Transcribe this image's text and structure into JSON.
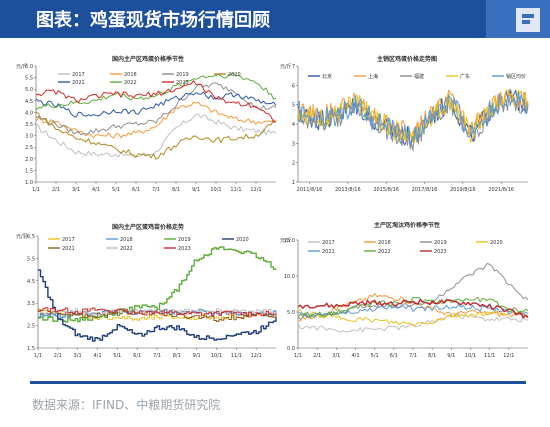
{
  "header": {
    "title": "图表：鸡蛋现货市场行情回顾"
  },
  "source": "数据来源：IFIND、中粮期货研究院",
  "charts": [
    {
      "id": "c1",
      "title": "国内主产区鸡蛋价格季节性",
      "unit": "元/斤",
      "y": [
        1.0,
        6.0
      ],
      "yticks": [
        "1.0",
        "1.5",
        "2.0",
        "2.5",
        "3.0",
        "3.5",
        "4.0",
        "4.5",
        "5.0",
        "5.5",
        "6.0"
      ],
      "xticks": [
        "1/1",
        "2/1",
        "3/1",
        "4/1",
        "5/1",
        "6/1",
        "7/1",
        "8/1",
        "9/1",
        "10/1",
        "11/1",
        "12/1"
      ],
      "legend": [
        {
          "name": "2017",
          "color": "#bfbfbf"
        },
        {
          "name": "2018",
          "color": "#f59a3a"
        },
        {
          "name": "2019",
          "color": "#8e8e8e"
        },
        {
          "name": "2020",
          "color": "#b08a1e"
        },
        {
          "name": "2021",
          "color": "#2c5aa8"
        },
        {
          "name": "2022",
          "color": "#5dab3a"
        },
        {
          "name": "2023",
          "color": "#d22b2b"
        }
      ]
    },
    {
      "id": "c2",
      "title": "主销区鸡蛋价格走势图",
      "unit": "元/斤",
      "y": [
        1,
        7
      ],
      "yticks": [
        "1",
        "2",
        "3",
        "4",
        "5",
        "6",
        "7"
      ],
      "xticks": [
        "2011/8/16",
        "2013/8/16",
        "2015/8/16",
        "2017/8/16",
        "2019/8/16",
        "2021/8/16"
      ],
      "legend": [
        {
          "name": "北京",
          "color": "#2c5aa8"
        },
        {
          "name": "上海",
          "color": "#f59a3a"
        },
        {
          "name": "福建",
          "color": "#8e8e8e"
        },
        {
          "name": "广东",
          "color": "#e8c21e"
        },
        {
          "name": "销区均价",
          "color": "#5b9bd5"
        }
      ]
    },
    {
      "id": "c3",
      "title": "国内主产区蛋鸡苗价格走势",
      "unit": "元/羽",
      "y": [
        1.5,
        7.0
      ],
      "yticks": [
        "1.5",
        "2.5",
        "3.5",
        "4.5",
        "5.5",
        "6.5"
      ],
      "xticks": [
        "1/1",
        "2/1",
        "3/1",
        "4/1",
        "5/1",
        "6/1",
        "7/1",
        "8/1",
        "9/1",
        "10/1",
        "11/1",
        "12/1"
      ],
      "legend": [
        {
          "name": "2017",
          "color": "#e8c21e"
        },
        {
          "name": "2018",
          "color": "#5b9bd5"
        },
        {
          "name": "2019",
          "color": "#5dab3a"
        },
        {
          "name": "2020",
          "color": "#1f3c7a"
        },
        {
          "name": "2021",
          "color": "#8a5a1e"
        },
        {
          "name": "2022",
          "color": "#bfbfbf"
        },
        {
          "name": "2023",
          "color": "#d22b2b"
        }
      ]
    },
    {
      "id": "c4",
      "title": "主产区淘汰鸡价格季节性",
      "unit": "元/斤",
      "y": [
        0,
        15
      ],
      "yticks": [
        "0.0",
        "5.0",
        "10.0",
        "15.0"
      ],
      "xticks": [
        "1/1",
        "2/1",
        "3/1",
        "4/1",
        "5/1",
        "6/1",
        "7/1",
        "8/1",
        "9/1",
        "10/1",
        "11/1",
        "12/1"
      ],
      "legend": [
        {
          "name": "2017",
          "color": "#bfbfbf"
        },
        {
          "name": "2018",
          "color": "#f59a3a"
        },
        {
          "name": "2019",
          "color": "#8e8e8e"
        },
        {
          "name": "2020",
          "color": "#e8c21e"
        },
        {
          "name": "2021",
          "color": "#5b9bd5"
        },
        {
          "name": "2022",
          "color": "#5dab3a"
        },
        {
          "name": "2023",
          "color": "#c0262c"
        }
      ]
    }
  ],
  "chart_data": [
    {
      "type": "line",
      "title": "国内主产区鸡蛋价格季节性",
      "ylabel": "元/斤",
      "ylim": [
        1.0,
        6.0
      ],
      "x": [
        "1/1",
        "2/1",
        "3/1",
        "4/1",
        "5/1",
        "6/1",
        "7/1",
        "8/1",
        "9/1",
        "10/1",
        "11/1",
        "12/1",
        "12/31"
      ],
      "series": [
        {
          "name": "2017",
          "values": [
            3.4,
            2.8,
            2.3,
            2.2,
            2.2,
            2.1,
            2.3,
            3.3,
            3.9,
            3.6,
            3.3,
            3.2,
            3.1
          ]
        },
        {
          "name": "2018",
          "values": [
            3.7,
            3.6,
            3.2,
            3.0,
            3.0,
            3.1,
            3.4,
            4.2,
            4.4,
            4.0,
            3.7,
            3.6,
            3.6
          ]
        },
        {
          "name": "2019",
          "values": [
            3.8,
            3.5,
            3.1,
            3.2,
            3.4,
            3.5,
            3.6,
            4.3,
            5.1,
            5.2,
            4.9,
            4.2,
            4.2
          ]
        },
        {
          "name": "2020",
          "values": [
            4.0,
            3.3,
            2.9,
            2.7,
            2.4,
            2.2,
            2.1,
            2.6,
            3.0,
            2.8,
            2.9,
            3.0,
            3.6
          ]
        },
        {
          "name": "2021",
          "values": [
            4.5,
            4.3,
            3.9,
            3.9,
            4.1,
            4.0,
            4.3,
            4.6,
            4.9,
            4.6,
            4.8,
            4.5,
            4.3
          ]
        },
        {
          "name": "2022",
          "values": [
            4.2,
            4.3,
            4.4,
            4.5,
            4.8,
            4.6,
            4.7,
            5.1,
            5.5,
            5.6,
            5.6,
            5.3,
            4.6
          ]
        },
        {
          "name": "2023",
          "values": [
            4.8,
            4.9,
            4.5,
            4.7,
            4.8,
            4.7,
            4.8,
            5.0,
            5.3,
            4.6,
            4.4,
            4.3,
            3.6
          ]
        }
      ]
    },
    {
      "type": "line",
      "title": "主销区鸡蛋价格走势图",
      "ylabel": "元/斤",
      "ylim": [
        1,
        7
      ],
      "x": [
        "2011/8/16",
        "2012/8/16",
        "2013/8/16",
        "2014/8/16",
        "2015/8/16",
        "2016/8/16",
        "2017/8/16",
        "2018/8/16",
        "2019/8/16",
        "2020/8/16",
        "2021/8/16",
        "2022/8/16",
        "2023/8/16"
      ],
      "series": [
        {
          "name": "北京",
          "values": [
            4.6,
            4.2,
            4.4,
            5.0,
            4.2,
            3.6,
            3.2,
            4.4,
            5.2,
            3.4,
            4.6,
            5.4,
            5.0
          ]
        },
        {
          "name": "上海",
          "values": [
            4.8,
            4.4,
            4.6,
            5.2,
            4.4,
            3.8,
            3.4,
            4.6,
            5.4,
            3.6,
            4.8,
            5.6,
            5.2
          ]
        },
        {
          "name": "福建",
          "values": [
            4.5,
            4.1,
            4.3,
            4.9,
            4.1,
            3.5,
            3.1,
            4.3,
            5.1,
            3.3,
            4.5,
            5.3,
            4.9
          ]
        },
        {
          "name": "广东",
          "values": [
            4.7,
            4.3,
            4.5,
            5.1,
            4.3,
            3.7,
            3.3,
            4.5,
            5.3,
            3.5,
            4.7,
            5.5,
            5.1
          ]
        },
        {
          "name": "销区均价",
          "values": [
            4.65,
            4.25,
            4.45,
            5.05,
            4.25,
            3.65,
            3.25,
            4.45,
            5.25,
            3.45,
            4.65,
            5.45,
            5.05
          ]
        }
      ]
    },
    {
      "type": "line",
      "title": "国内主产区蛋鸡苗价格走势",
      "ylabel": "元/羽",
      "ylim": [
        1.5,
        7.0
      ],
      "x": [
        "1/1",
        "2/1",
        "3/1",
        "4/1",
        "5/1",
        "6/1",
        "7/1",
        "8/1",
        "9/1",
        "10/1",
        "11/1",
        "12/1",
        "12/31"
      ],
      "series": [
        {
          "name": "2017",
          "values": [
            3.3,
            3.2,
            3.1,
            3.0,
            3.0,
            2.9,
            3.0,
            3.0,
            3.0,
            3.0,
            3.1,
            3.1,
            3.1
          ]
        },
        {
          "name": "2018",
          "values": [
            3.1,
            3.1,
            3.2,
            3.2,
            3.3,
            3.2,
            3.3,
            3.3,
            3.3,
            3.2,
            3.2,
            3.2,
            3.2
          ]
        },
        {
          "name": "2019",
          "values": [
            3.0,
            2.9,
            2.9,
            3.0,
            3.3,
            3.5,
            3.5,
            4.4,
            5.9,
            6.4,
            6.3,
            6.0,
            5.4
          ]
        },
        {
          "name": "2020",
          "values": [
            5.3,
            2.9,
            2.1,
            1.9,
            2.6,
            2.1,
            2.5,
            2.5,
            2.0,
            2.0,
            2.2,
            2.3,
            3.0
          ]
        },
        {
          "name": "2021",
          "values": [
            3.2,
            3.2,
            3.1,
            3.1,
            3.2,
            3.3,
            3.2,
            3.1,
            3.0,
            2.9,
            3.0,
            3.1,
            3.1
          ]
        },
        {
          "name": "2022",
          "values": [
            3.3,
            3.3,
            3.3,
            3.2,
            3.3,
            3.3,
            3.3,
            3.3,
            3.3,
            3.3,
            3.3,
            3.3,
            3.3
          ]
        },
        {
          "name": "2023",
          "values": [
            3.4,
            3.4,
            3.3,
            3.4,
            3.3,
            3.2,
            3.3,
            3.2,
            3.2,
            3.2,
            3.2,
            3.2,
            3.2
          ]
        }
      ]
    },
    {
      "type": "line",
      "title": "主产区淘汰鸡价格季节性",
      "ylabel": "元/斤",
      "ylim": [
        0,
        15
      ],
      "x": [
        "1/1",
        "2/1",
        "3/1",
        "4/1",
        "5/1",
        "6/1",
        "7/1",
        "8/1",
        "9/1",
        "10/1",
        "11/1",
        "12/1",
        "12/31"
      ],
      "series": [
        {
          "name": "2017",
          "values": [
            3.0,
            2.8,
            2.5,
            2.5,
            2.6,
            2.8,
            3.0,
            3.6,
            4.6,
            4.3,
            4.0,
            4.0,
            3.9
          ]
        },
        {
          "name": "2018",
          "values": [
            4.0,
            4.5,
            5.5,
            6.4,
            7.3,
            7.0,
            6.4,
            5.4,
            4.6,
            5.0,
            4.8,
            4.6,
            4.5
          ]
        },
        {
          "name": "2019",
          "values": [
            4.3,
            4.5,
            4.7,
            5.6,
            6.0,
            5.8,
            6.0,
            6.3,
            8.4,
            10.1,
            11.6,
            8.8,
            6.7
          ]
        },
        {
          "name": "2020",
          "values": [
            5.0,
            4.6,
            4.2,
            4.0,
            3.8,
            3.5,
            3.3,
            3.6,
            4.5,
            4.6,
            4.8,
            4.9,
            4.3
          ]
        },
        {
          "name": "2021",
          "values": [
            4.6,
            4.7,
            4.8,
            5.0,
            5.5,
            5.8,
            5.4,
            5.5,
            5.8,
            5.6,
            5.4,
            5.0,
            4.8
          ]
        },
        {
          "name": "2022",
          "values": [
            4.5,
            4.6,
            4.9,
            5.7,
            6.3,
            6.2,
            6.8,
            6.4,
            6.6,
            6.8,
            6.6,
            5.4,
            5.2
          ]
        },
        {
          "name": "2023",
          "values": [
            5.8,
            5.9,
            5.8,
            6.2,
            6.3,
            6.2,
            6.4,
            6.4,
            6.3,
            6.2,
            5.8,
            5.2,
            4.2
          ]
        }
      ]
    }
  ]
}
